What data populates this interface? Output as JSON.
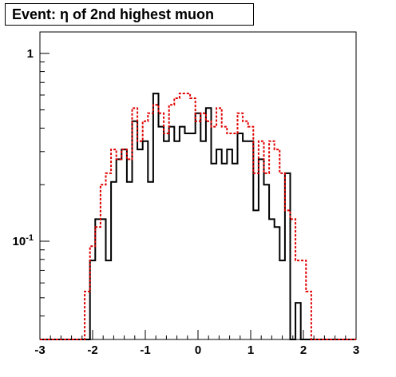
{
  "title": "Event: η of 2nd highest muon",
  "chart_data": {
    "type": "line",
    "title": "Event: η of 2nd highest muon",
    "xlabel": "",
    "ylabel": "",
    "xlim": [
      -3,
      3
    ],
    "ylim": [
      0.03,
      1.3
    ],
    "yscale": "log",
    "grid": false,
    "x_ticks": [
      "-3",
      "-2",
      "-1",
      "0",
      "1",
      "2",
      "3"
    ],
    "y_ticks": [
      {
        "value": 1,
        "label": "1"
      },
      {
        "value": 0.1,
        "label": "10^-1"
      }
    ],
    "bin_width": 0.1,
    "series": [
      {
        "style": "solid",
        "color": "#000000",
        "bins": [
          {
            "x": -3.0,
            "y": 0.03
          },
          {
            "x": -2.9,
            "y": 0.03
          },
          {
            "x": -2.8,
            "y": 0.03
          },
          {
            "x": -2.7,
            "y": 0.03
          },
          {
            "x": -2.6,
            "y": 0.03
          },
          {
            "x": -2.5,
            "y": 0.03
          },
          {
            "x": -2.4,
            "y": 0.03
          },
          {
            "x": -2.3,
            "y": 0.03
          },
          {
            "x": -2.2,
            "y": 0.03
          },
          {
            "x": -2.1,
            "y": 0.03
          },
          {
            "x": -2.05,
            "y": 0.079
          },
          {
            "x": -1.95,
            "y": 0.131
          },
          {
            "x": -1.85,
            "y": 0.131
          },
          {
            "x": -1.75,
            "y": 0.079
          },
          {
            "x": -1.65,
            "y": 0.207
          },
          {
            "x": -1.55,
            "y": 0.273
          },
          {
            "x": -1.45,
            "y": 0.308
          },
          {
            "x": -1.35,
            "y": 0.207
          },
          {
            "x": -1.25,
            "y": 0.435
          },
          {
            "x": -1.15,
            "y": 0.308
          },
          {
            "x": -1.05,
            "y": 0.341
          },
          {
            "x": -0.95,
            "y": 0.207
          },
          {
            "x": -0.85,
            "y": 0.611
          },
          {
            "x": -0.75,
            "y": 0.407
          },
          {
            "x": -0.65,
            "y": 0.341
          },
          {
            "x": -0.55,
            "y": 0.407
          },
          {
            "x": -0.45,
            "y": 0.341
          },
          {
            "x": -0.35,
            "y": 0.407
          },
          {
            "x": -0.25,
            "y": 0.375
          },
          {
            "x": -0.15,
            "y": 0.375
          },
          {
            "x": -0.05,
            "y": 0.48
          },
          {
            "x": 0.05,
            "y": 0.341
          },
          {
            "x": 0.15,
            "y": 0.512
          },
          {
            "x": 0.25,
            "y": 0.259
          },
          {
            "x": 0.35,
            "y": 0.308
          },
          {
            "x": 0.45,
            "y": 0.259
          },
          {
            "x": 0.55,
            "y": 0.308
          },
          {
            "x": 0.65,
            "y": 0.259
          },
          {
            "x": 0.75,
            "y": 0.375
          },
          {
            "x": 0.85,
            "y": 0.341
          },
          {
            "x": 0.95,
            "y": 0.341
          },
          {
            "x": 1.05,
            "y": 0.146
          },
          {
            "x": 1.15,
            "y": 0.273
          },
          {
            "x": 1.25,
            "y": 0.2
          },
          {
            "x": 1.35,
            "y": 0.131
          },
          {
            "x": 1.45,
            "y": 0.119
          },
          {
            "x": 1.55,
            "y": 0.079
          },
          {
            "x": 1.65,
            "y": 0.23
          },
          {
            "x": 1.75,
            "y": 0.03
          },
          {
            "x": 1.85,
            "y": 0.047
          },
          {
            "x": 1.95,
            "y": 0.03
          },
          {
            "x": 2.05,
            "y": 0.03
          },
          {
            "x": 2.15,
            "y": 0.03
          },
          {
            "x": 2.25,
            "y": 0.03
          },
          {
            "x": 2.35,
            "y": 0.03
          },
          {
            "x": 2.45,
            "y": 0.03
          },
          {
            "x": 2.55,
            "y": 0.03
          },
          {
            "x": 2.65,
            "y": 0.03
          },
          {
            "x": 2.75,
            "y": 0.03
          },
          {
            "x": 2.85,
            "y": 0.03
          },
          {
            "x": 2.95,
            "y": 0.03
          }
        ]
      },
      {
        "style": "dotted",
        "color": "#e00000",
        "bins": [
          {
            "x": -3.0,
            "y": 0.03
          },
          {
            "x": -2.9,
            "y": 0.03
          },
          {
            "x": -2.8,
            "y": 0.03
          },
          {
            "x": -2.7,
            "y": 0.03
          },
          {
            "x": -2.6,
            "y": 0.03
          },
          {
            "x": -2.5,
            "y": 0.03
          },
          {
            "x": -2.4,
            "y": 0.03
          },
          {
            "x": -2.3,
            "y": 0.03
          },
          {
            "x": -2.2,
            "y": 0.03
          },
          {
            "x": -2.15,
            "y": 0.054
          },
          {
            "x": -2.05,
            "y": 0.094
          },
          {
            "x": -1.95,
            "y": 0.119
          },
          {
            "x": -1.85,
            "y": 0.2
          },
          {
            "x": -1.75,
            "y": 0.23
          },
          {
            "x": -1.65,
            "y": 0.308
          },
          {
            "x": -1.55,
            "y": 0.273
          },
          {
            "x": -1.45,
            "y": 0.308
          },
          {
            "x": -1.35,
            "y": 0.273
          },
          {
            "x": -1.25,
            "y": 0.511
          },
          {
            "x": -1.15,
            "y": 0.341
          },
          {
            "x": -1.05,
            "y": 0.435
          },
          {
            "x": -0.95,
            "y": 0.48
          },
          {
            "x": -0.85,
            "y": 0.532
          },
          {
            "x": -0.75,
            "y": 0.48
          },
          {
            "x": -0.65,
            "y": 0.375
          },
          {
            "x": -0.55,
            "y": 0.532
          },
          {
            "x": -0.45,
            "y": 0.577
          },
          {
            "x": -0.35,
            "y": 0.612
          },
          {
            "x": -0.25,
            "y": 0.612
          },
          {
            "x": -0.15,
            "y": 0.577
          },
          {
            "x": -0.05,
            "y": 0.435
          },
          {
            "x": 0.05,
            "y": 0.48
          },
          {
            "x": 0.15,
            "y": 0.435
          },
          {
            "x": 0.25,
            "y": 0.407
          },
          {
            "x": 0.35,
            "y": 0.511
          },
          {
            "x": 0.45,
            "y": 0.407
          },
          {
            "x": 0.55,
            "y": 0.375
          },
          {
            "x": 0.65,
            "y": 0.375
          },
          {
            "x": 0.75,
            "y": 0.48
          },
          {
            "x": 0.85,
            "y": 0.435
          },
          {
            "x": 0.95,
            "y": 0.407
          },
          {
            "x": 1.05,
            "y": 0.23
          },
          {
            "x": 1.15,
            "y": 0.341
          },
          {
            "x": 1.25,
            "y": 0.23
          },
          {
            "x": 1.35,
            "y": 0.341
          },
          {
            "x": 1.45,
            "y": 0.308
          },
          {
            "x": 1.55,
            "y": 0.23
          },
          {
            "x": 1.65,
            "y": 0.146
          },
          {
            "x": 1.75,
            "y": 0.131
          },
          {
            "x": 1.85,
            "y": 0.079
          },
          {
            "x": 1.95,
            "y": 0.079
          },
          {
            "x": 2.05,
            "y": 0.054
          },
          {
            "x": 2.15,
            "y": 0.03
          },
          {
            "x": 2.25,
            "y": 0.03
          },
          {
            "x": 2.35,
            "y": 0.03
          },
          {
            "x": 2.45,
            "y": 0.03
          },
          {
            "x": 2.55,
            "y": 0.03
          },
          {
            "x": 2.65,
            "y": 0.03
          },
          {
            "x": 2.75,
            "y": 0.03
          },
          {
            "x": 2.85,
            "y": 0.03
          },
          {
            "x": 2.95,
            "y": 0.03
          }
        ]
      }
    ]
  }
}
